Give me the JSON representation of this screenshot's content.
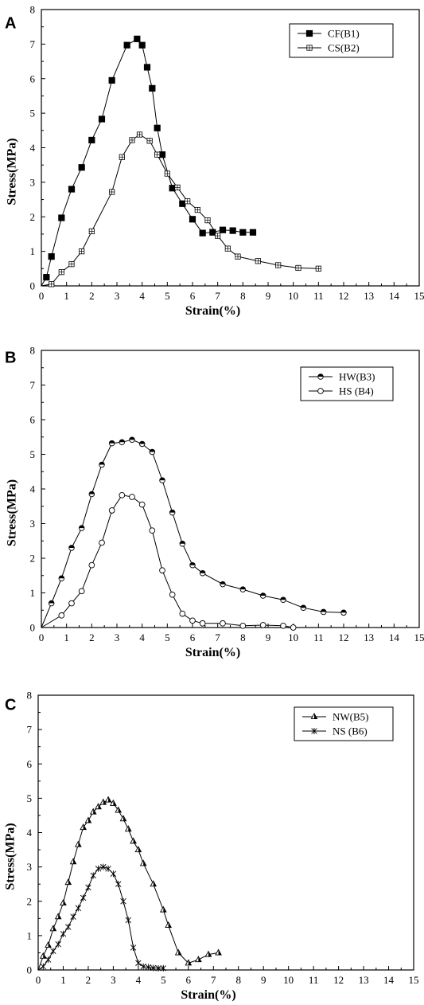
{
  "chart_data": [
    {
      "panel": "A",
      "type": "line",
      "xlabel": "Strain(%)",
      "ylabel": "Stress(MPa)",
      "xlim": [
        0,
        15
      ],
      "ylim": [
        0,
        8
      ],
      "xticks": [
        "0",
        "1",
        "2",
        "3",
        "4",
        "5",
        "6",
        "7",
        "8",
        "9",
        "10",
        "11",
        "12",
        "13",
        "14",
        "15"
      ],
      "yticks": [
        "0",
        "1",
        "2",
        "3",
        "4",
        "5",
        "6",
        "7",
        "8"
      ],
      "legend_position": "top-right",
      "series": [
        {
          "name": "CF(B1)",
          "marker": "filled-square",
          "points": [
            [
              0,
              0
            ],
            [
              0.2,
              0.25
            ],
            [
              0.4,
              0.85
            ],
            [
              0.8,
              1.97
            ],
            [
              1.2,
              2.8
            ],
            [
              1.6,
              3.43
            ],
            [
              2.0,
              4.22
            ],
            [
              2.4,
              4.83
            ],
            [
              2.8,
              5.95
            ],
            [
              3.4,
              6.97
            ],
            [
              3.8,
              7.15
            ],
            [
              4.0,
              6.97
            ],
            [
              4.2,
              6.33
            ],
            [
              4.4,
              5.72
            ],
            [
              4.6,
              4.57
            ],
            [
              4.8,
              3.8
            ],
            [
              5.2,
              2.83
            ],
            [
              5.6,
              2.38
            ],
            [
              6.0,
              1.93
            ],
            [
              6.4,
              1.53
            ],
            [
              6.8,
              1.55
            ],
            [
              7.2,
              1.62
            ],
            [
              7.6,
              1.6
            ],
            [
              8.0,
              1.55
            ],
            [
              8.4,
              1.55
            ]
          ]
        },
        {
          "name": "CS(B2)",
          "marker": "square-plus",
          "points": [
            [
              0,
              0
            ],
            [
              0.4,
              0.05
            ],
            [
              0.8,
              0.4
            ],
            [
              1.2,
              0.63
            ],
            [
              1.6,
              1.0
            ],
            [
              2.0,
              1.58
            ],
            [
              2.8,
              2.72
            ],
            [
              3.2,
              3.73
            ],
            [
              3.6,
              4.22
            ],
            [
              3.9,
              4.38
            ],
            [
              4.3,
              4.2
            ],
            [
              4.6,
              3.8
            ],
            [
              5.0,
              3.25
            ],
            [
              5.4,
              2.85
            ],
            [
              5.8,
              2.45
            ],
            [
              6.2,
              2.2
            ],
            [
              6.6,
              1.9
            ],
            [
              7.0,
              1.45
            ],
            [
              7.4,
              1.08
            ],
            [
              7.8,
              0.85
            ],
            [
              8.6,
              0.72
            ],
            [
              9.4,
              0.6
            ],
            [
              10.2,
              0.52
            ],
            [
              11.0,
              0.5
            ]
          ]
        }
      ]
    },
    {
      "panel": "B",
      "type": "line",
      "xlabel": "Strain(%)",
      "ylabel": "Stress(MPa)",
      "xlim": [
        0,
        15
      ],
      "ylim": [
        0,
        8
      ],
      "xticks": [
        "0",
        "1",
        "2",
        "3",
        "4",
        "5",
        "6",
        "7",
        "8",
        "9",
        "10",
        "11",
        "12",
        "13",
        "14",
        "15"
      ],
      "yticks": [
        "0",
        "1",
        "2",
        "3",
        "4",
        "5",
        "6",
        "7",
        "8"
      ],
      "legend_position": "top-right",
      "series": [
        {
          "name": "HW(B3)",
          "marker": "half-filled-circle",
          "points": [
            [
              0,
              0
            ],
            [
              0.4,
              0.7
            ],
            [
              0.8,
              1.42
            ],
            [
              1.2,
              2.3
            ],
            [
              1.6,
              2.87
            ],
            [
              2.0,
              3.85
            ],
            [
              2.4,
              4.7
            ],
            [
              2.8,
              5.32
            ],
            [
              3.2,
              5.35
            ],
            [
              3.6,
              5.42
            ],
            [
              4.0,
              5.3
            ],
            [
              4.4,
              5.07
            ],
            [
              4.8,
              4.25
            ],
            [
              5.2,
              3.32
            ],
            [
              5.6,
              2.42
            ],
            [
              6.0,
              1.8
            ],
            [
              6.4,
              1.57
            ],
            [
              7.2,
              1.25
            ],
            [
              8.0,
              1.1
            ],
            [
              8.8,
              0.92
            ],
            [
              9.6,
              0.8
            ],
            [
              10.4,
              0.57
            ],
            [
              11.2,
              0.45
            ],
            [
              12.0,
              0.43
            ]
          ]
        },
        {
          "name": "HS (B4)",
          "marker": "open-circle",
          "points": [
            [
              0,
              0
            ],
            [
              0.8,
              0.35
            ],
            [
              1.2,
              0.7
            ],
            [
              1.6,
              1.05
            ],
            [
              2.0,
              1.8
            ],
            [
              2.4,
              2.45
            ],
            [
              2.8,
              3.38
            ],
            [
              3.2,
              3.82
            ],
            [
              3.6,
              3.77
            ],
            [
              4.0,
              3.55
            ],
            [
              4.4,
              2.8
            ],
            [
              4.8,
              1.65
            ],
            [
              5.2,
              0.95
            ],
            [
              5.6,
              0.4
            ],
            [
              6.0,
              0.2
            ],
            [
              6.4,
              0.12
            ],
            [
              7.2,
              0.12
            ],
            [
              8.0,
              0.05
            ],
            [
              8.8,
              0.07
            ],
            [
              9.6,
              0.05
            ],
            [
              10.0,
              0.0
            ]
          ]
        }
      ]
    },
    {
      "panel": "C",
      "type": "line",
      "xlabel": "Strain(%)",
      "ylabel": "Stress(MPa)",
      "xlim": [
        0,
        15
      ],
      "ylim": [
        0,
        8
      ],
      "xticks": [
        "0",
        "1",
        "2",
        "3",
        "4",
        "5",
        "6",
        "7",
        "8",
        "9",
        "10",
        "11",
        "12",
        "13",
        "14",
        "15"
      ],
      "yticks": [
        "0",
        "1",
        "2",
        "3",
        "4",
        "5",
        "6",
        "7",
        "8"
      ],
      "legend_position": "top-right",
      "series": [
        {
          "name": "NW(B5)",
          "marker": "half-filled-triangle",
          "points": [
            [
              0,
              0
            ],
            [
              0.2,
              0.4
            ],
            [
              0.4,
              0.72
            ],
            [
              0.6,
              1.2
            ],
            [
              0.8,
              1.55
            ],
            [
              1.0,
              1.95
            ],
            [
              1.2,
              2.55
            ],
            [
              1.4,
              3.15
            ],
            [
              1.6,
              3.65
            ],
            [
              1.8,
              4.15
            ],
            [
              2.0,
              4.35
            ],
            [
              2.2,
              4.6
            ],
            [
              2.4,
              4.75
            ],
            [
              2.6,
              4.88
            ],
            [
              2.8,
              4.95
            ],
            [
              3.0,
              4.85
            ],
            [
              3.2,
              4.65
            ],
            [
              3.4,
              4.4
            ],
            [
              3.6,
              4.1
            ],
            [
              3.8,
              3.75
            ],
            [
              4.0,
              3.5
            ],
            [
              4.2,
              3.1
            ],
            [
              4.6,
              2.5
            ],
            [
              5.0,
              1.75
            ],
            [
              5.2,
              1.3
            ],
            [
              5.6,
              0.5
            ],
            [
              6.0,
              0.2
            ],
            [
              6.4,
              0.3
            ],
            [
              6.8,
              0.45
            ],
            [
              7.2,
              0.5
            ]
          ]
        },
        {
          "name": "NS (B6)",
          "marker": "asterisk",
          "points": [
            [
              0,
              0
            ],
            [
              0.2,
              0.1
            ],
            [
              0.4,
              0.3
            ],
            [
              0.6,
              0.55
            ],
            [
              0.8,
              0.75
            ],
            [
              1.0,
              1.05
            ],
            [
              1.2,
              1.25
            ],
            [
              1.4,
              1.55
            ],
            [
              1.6,
              1.8
            ],
            [
              1.8,
              2.1
            ],
            [
              2.0,
              2.4
            ],
            [
              2.2,
              2.75
            ],
            [
              2.4,
              2.95
            ],
            [
              2.6,
              3.0
            ],
            [
              2.8,
              2.95
            ],
            [
              3.0,
              2.8
            ],
            [
              3.2,
              2.5
            ],
            [
              3.4,
              2.0
            ],
            [
              3.6,
              1.45
            ],
            [
              3.8,
              0.65
            ],
            [
              4.0,
              0.2
            ],
            [
              4.2,
              0.1
            ],
            [
              4.4,
              0.08
            ],
            [
              4.6,
              0.06
            ],
            [
              4.8,
              0.05
            ],
            [
              5.0,
              0.05
            ]
          ]
        }
      ]
    }
  ]
}
